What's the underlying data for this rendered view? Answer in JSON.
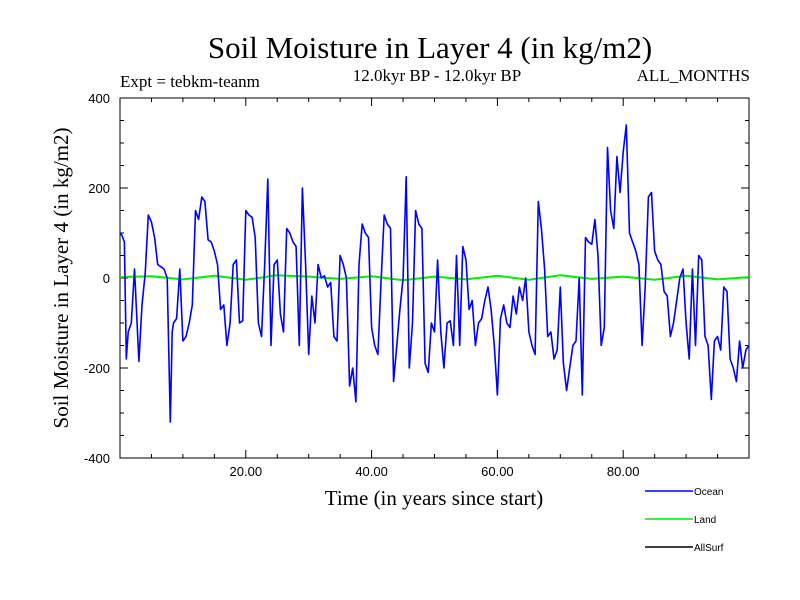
{
  "chart_data": {
    "type": "line",
    "title": "Soil Moisture in Layer 4 (in kg/m2)",
    "subtitle_left": "Expt = tebkm-teanm",
    "subtitle_center": "12.0kyr BP - 12.0kyr BP",
    "subtitle_right": "ALL_MONTHS",
    "xlabel": "Time (in years since start)",
    "ylabel": "Soil Moisture in Layer 4 (in kg/m2)",
    "xlim": [
      0,
      100
    ],
    "ylim": [
      -400,
      400
    ],
    "x_ticks": [
      {
        "value": 20,
        "label": "20.00"
      },
      {
        "value": 40,
        "label": "40.00"
      },
      {
        "value": 60,
        "label": "60.00"
      },
      {
        "value": 80,
        "label": "80.00"
      }
    ],
    "y_ticks": [
      {
        "value": 400,
        "label": "400"
      },
      {
        "value": 200,
        "label": "200"
      },
      {
        "value": 0,
        "label": "0"
      },
      {
        "value": -200,
        "label": "-200"
      },
      {
        "value": -400,
        "label": "-400"
      }
    ],
    "series": [
      {
        "name": "Ocean",
        "color": "#0000ff",
        "x": [
          0,
          0.3,
          0.7,
          1,
          1.3,
          1.8,
          2.3,
          3,
          3.5,
          4,
          4.5,
          5,
          5.5,
          6,
          6.5,
          7,
          7.5,
          8,
          8.3,
          8.5,
          9,
          9.5,
          10,
          10.5,
          11,
          11.5,
          12,
          12.5,
          13,
          13.5,
          14,
          14.5,
          15,
          15.5,
          16,
          16.5,
          17,
          17.5,
          18,
          18.5,
          19,
          19.5,
          20,
          20.5,
          21,
          21.5,
          22,
          22.5,
          23,
          23.5,
          24,
          24.5,
          25,
          25.5,
          26,
          26.5,
          27,
          27.5,
          28,
          28.5,
          29,
          29.5,
          30,
          30.5,
          31,
          31.5,
          32,
          32.5,
          33,
          33.5,
          34,
          34.5,
          35,
          35.5,
          36,
          36.5,
          37,
          37.5,
          38,
          38.5,
          39,
          39.5,
          40,
          40.5,
          41,
          41.5,
          42,
          42.5,
          43,
          43.5,
          44,
          44.5,
          45,
          45.5,
          46,
          46.5,
          47,
          47.5,
          48,
          48.5,
          49,
          49.5,
          50,
          50.5,
          51,
          51.5,
          52,
          52.5,
          53,
          53.5,
          54,
          54.5,
          55,
          55.5,
          56,
          56.5,
          57,
          57.5,
          58,
          58.5,
          59,
          59.5,
          60,
          60.5,
          61,
          61.5,
          62,
          62.5,
          63,
          63.5,
          64,
          64.5,
          65,
          65.5,
          66,
          66.5,
          67,
          67.5,
          68,
          68.5,
          69,
          69.5,
          70,
          70.5,
          71,
          71.5,
          72,
          72.5,
          73,
          73.5,
          74,
          74.5,
          75,
          75.5,
          76,
          76.5,
          77,
          77.5,
          78,
          78.5,
          79,
          79.5,
          80,
          80.5,
          81,
          81.5,
          82,
          82.5,
          83,
          83.5,
          84,
          84.5,
          85,
          85.5,
          86,
          86.5,
          87,
          87.5,
          88,
          88.5,
          89,
          89.5,
          90,
          90.5,
          91,
          91.5,
          92,
          92.5,
          93,
          93.5,
          94,
          94.5,
          95,
          95.5,
          96,
          96.5,
          97,
          97.5,
          98,
          98.5,
          99,
          99.5,
          100
        ],
        "values": [
          100,
          95,
          80,
          -180,
          -120,
          -100,
          20,
          -185,
          -60,
          10,
          140,
          125,
          90,
          30,
          25,
          20,
          0,
          -320,
          -120,
          -100,
          -90,
          20,
          -140,
          -130,
          -100,
          -60,
          150,
          130,
          180,
          170,
          85,
          80,
          60,
          30,
          -70,
          -60,
          -150,
          -100,
          30,
          40,
          -100,
          -95,
          150,
          140,
          135,
          90,
          -100,
          -130,
          30,
          220,
          -150,
          30,
          40,
          -80,
          -120,
          110,
          100,
          80,
          70,
          -150,
          200,
          30,
          -170,
          -40,
          -100,
          30,
          0,
          5,
          -20,
          -10,
          -130,
          -140,
          50,
          30,
          0,
          -240,
          -200,
          -275,
          30,
          120,
          100,
          90,
          -110,
          -150,
          -170,
          -10,
          140,
          120,
          110,
          -230,
          -150,
          -70,
          0,
          225,
          -200,
          -100,
          150,
          120,
          110,
          -190,
          -210,
          -100,
          -120,
          40,
          -120,
          -200,
          -100,
          -95,
          -150,
          50,
          -150,
          70,
          40,
          -70,
          -50,
          -150,
          -100,
          -90,
          -50,
          -20,
          -70,
          -150,
          -260,
          -90,
          -60,
          -100,
          -110,
          -40,
          -80,
          -20,
          -50,
          0,
          -120,
          -150,
          -170,
          170,
          110,
          20,
          -130,
          -120,
          -180,
          -160,
          -20,
          -190,
          -250,
          -200,
          -150,
          -140,
          0,
          -260,
          90,
          80,
          75,
          130,
          50,
          -150,
          -110,
          290,
          150,
          110,
          270,
          190,
          280,
          340,
          100,
          80,
          60,
          30,
          -150,
          -20,
          180,
          190,
          60,
          40,
          30,
          -30,
          -40,
          -130,
          -100,
          -50,
          0,
          20,
          -100,
          -180,
          20,
          -150,
          50,
          40,
          -130,
          -150,
          -270,
          -140,
          -130,
          -160,
          -20,
          -30,
          -180,
          -200,
          -230,
          -140,
          -200,
          -160,
          -150
        ]
      },
      {
        "name": "Land",
        "color": "#00ee00",
        "x": [
          0,
          5,
          10,
          15,
          20,
          25,
          30,
          35,
          40,
          45,
          50,
          55,
          60,
          65,
          70,
          75,
          80,
          85,
          90,
          95,
          100
        ],
        "values": [
          2,
          4,
          -3,
          5,
          -4,
          6,
          3,
          -2,
          4,
          -5,
          3,
          -3,
          5,
          -4,
          6,
          -2,
          3,
          -4,
          5,
          -3,
          2
        ]
      },
      {
        "name": "AllSurf",
        "color": "#000000",
        "x": [],
        "values": []
      }
    ]
  }
}
